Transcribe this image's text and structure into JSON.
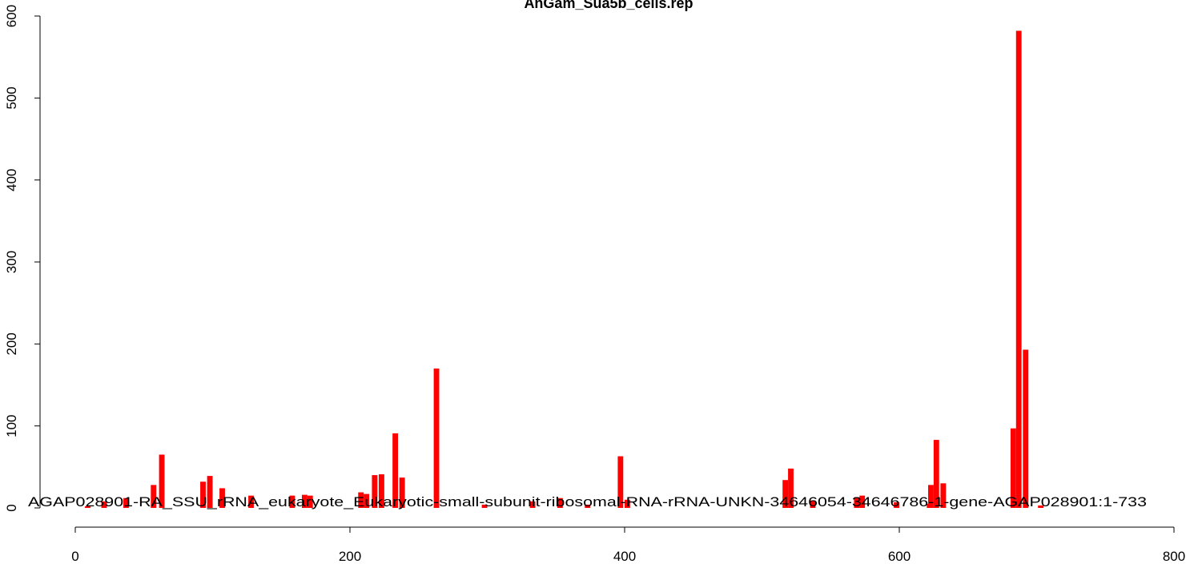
{
  "chart_data": {
    "type": "bar",
    "title": "AnGam_Sua5b_cells.rep",
    "annotation": "AGAP028901-RA_SSU_rRNA_eukaryote_Eukaryotic-small-subunit-ribosomal-RNA-rRNA-UNKN-34646054-34646786-1-gene-AGAP028901:1-733",
    "x": [
      9,
      21,
      37,
      57,
      63,
      93,
      98,
      107,
      128,
      158,
      167,
      171,
      208,
      212,
      218,
      223,
      233,
      238,
      263,
      298,
      333,
      353,
      373,
      397,
      402,
      517,
      521,
      537,
      569,
      573,
      598,
      622,
      623,
      627,
      632,
      683,
      687,
      692,
      703
    ],
    "values": [
      2,
      8,
      12,
      28,
      65,
      32,
      39,
      24,
      15,
      15,
      16,
      15,
      19,
      17,
      40,
      41,
      91,
      37,
      170,
      4,
      8,
      12,
      4,
      63,
      10,
      34,
      48,
      9,
      13,
      15,
      7,
      5,
      28,
      83,
      30,
      97,
      582,
      193,
      3
    ],
    "color": "#ff0000",
    "xlim": [
      0,
      800
    ],
    "xticks": [
      0,
      200,
      400,
      600,
      800
    ],
    "ylim": [
      0,
      600
    ],
    "yticks": [
      0,
      100,
      200,
      300,
      400,
      500,
      600
    ]
  }
}
